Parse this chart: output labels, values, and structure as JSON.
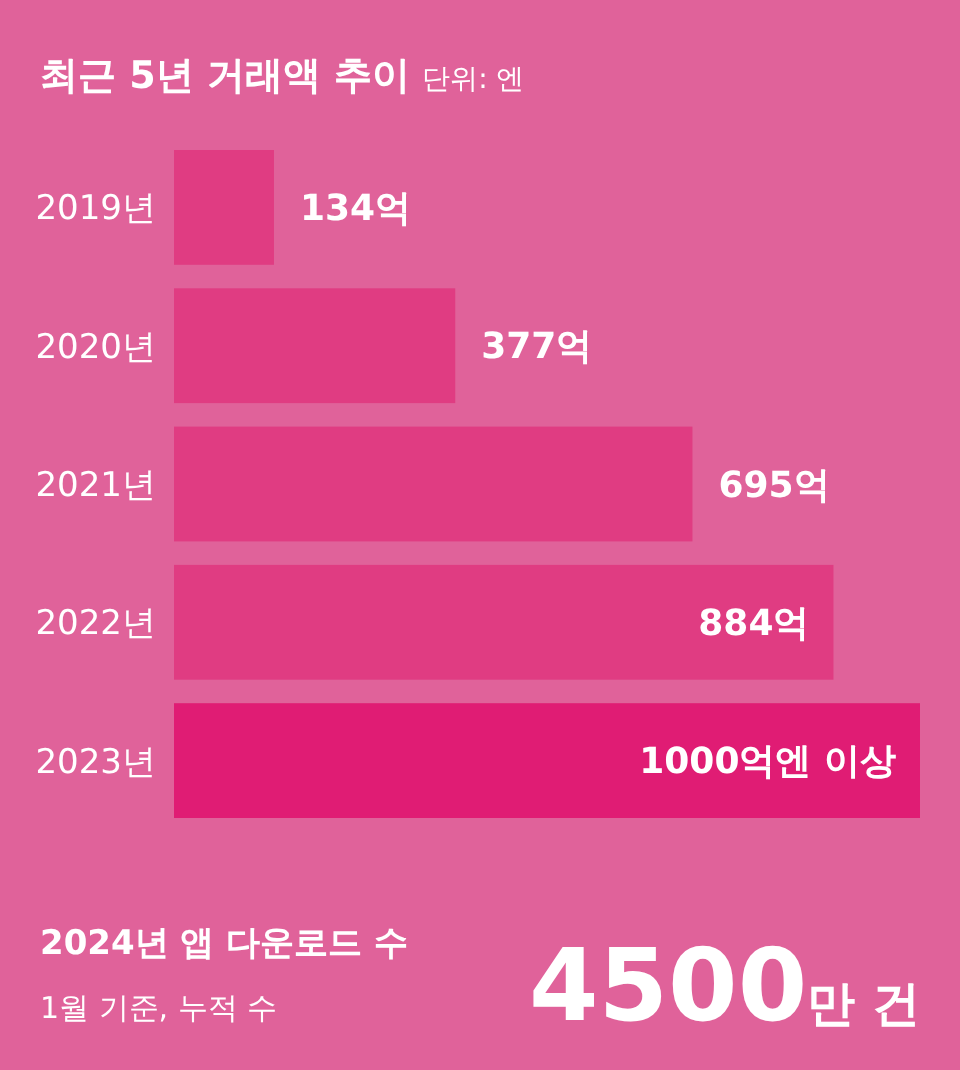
{
  "chart_data": {
    "type": "bar",
    "orientation": "horizontal",
    "title": "최근 5년 거래액 추이",
    "subtitle": "단위: 엔",
    "categories": [
      "2019년",
      "2020년",
      "2021년",
      "2022년",
      "2023년"
    ],
    "values": [
      134,
      377,
      695,
      884,
      1000
    ],
    "value_labels": [
      "134억",
      "377억",
      "695억",
      "884억",
      "1000억엔 이상"
    ],
    "colors": [
      "#e03c82",
      "#e03c82",
      "#e03c82",
      "#e03c82",
      "#e01c74"
    ],
    "annotations": [
      "2024년 앱 다운로드 수",
      "1월 기준, 누적 수",
      "4500만 건"
    ]
  }
}
